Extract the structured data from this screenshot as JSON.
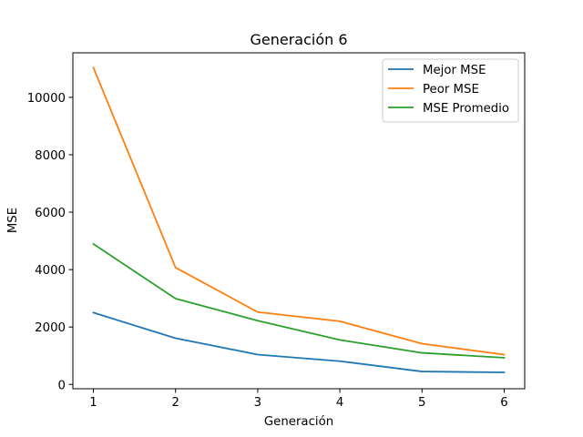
{
  "chart_data": {
    "type": "line",
    "title": "Generación 6",
    "xlabel": "Generación",
    "ylabel": "MSE",
    "x": [
      1,
      2,
      3,
      4,
      5,
      6
    ],
    "xticks": [
      1,
      2,
      3,
      4,
      5,
      6
    ],
    "yticks": [
      0,
      2000,
      4000,
      6000,
      8000,
      10000
    ],
    "xlim": [
      0.75,
      6.25
    ],
    "ylim": [
      -150,
      11550
    ],
    "grid": false,
    "legend_position": "top-right",
    "series": [
      {
        "name": "Mejor MSE",
        "color": "#1f77b4",
        "values": [
          2500,
          1610,
          1040,
          810,
          450,
          420
        ]
      },
      {
        "name": "Peor MSE",
        "color": "#ff7f0e",
        "values": [
          11030,
          4070,
          2520,
          2200,
          1420,
          1040
        ]
      },
      {
        "name": "MSE Promedio",
        "color": "#2ca02c",
        "values": [
          4890,
          2990,
          2220,
          1550,
          1100,
          930
        ]
      }
    ]
  }
}
